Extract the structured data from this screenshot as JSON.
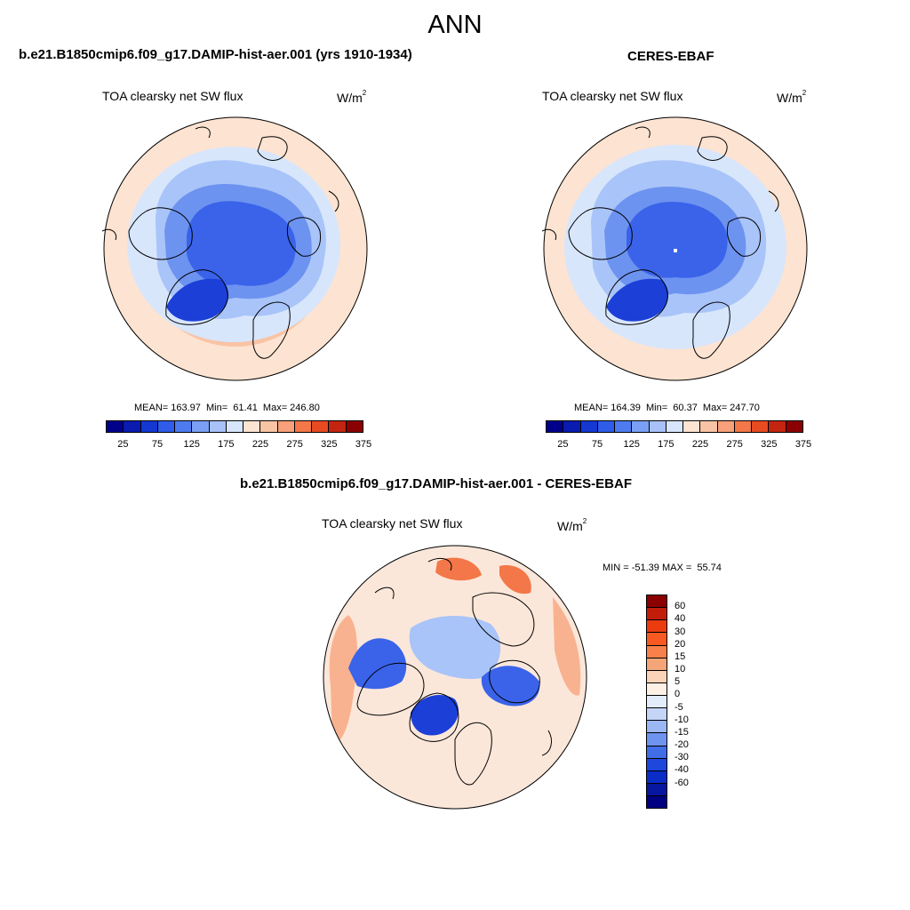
{
  "main_title": "ANN",
  "panels": {
    "model": {
      "title": "b.e21.B1850cmip6.f09_g17.DAMIP-hist-aer.001 (yrs 1910-1934)",
      "variable": "TOA clearsky net SW flux",
      "units_base": "W/m",
      "units_exp": "2",
      "stats": "MEAN= 163.97  Min=  61.41  Max= 246.80",
      "mean": 163.97,
      "min": 61.41,
      "max": 246.8
    },
    "obs": {
      "title": "CERES-EBAF",
      "variable": "TOA clearsky net SW flux",
      "units_base": "W/m",
      "units_exp": "2",
      "stats": "MEAN= 164.39  Min=  60.37  Max= 247.70",
      "mean": 164.39,
      "min": 60.37,
      "max": 247.7
    },
    "diff": {
      "title": "b.e21.B1850cmip6.f09_g17.DAMIP-hist-aer.001 - CERES-EBAF",
      "variable": "TOA clearsky net SW flux",
      "units_base": "W/m",
      "units_exp": "2",
      "stats": "MIN = -51.39 MAX =  55.74",
      "min": -51.39,
      "max": 55.74
    }
  },
  "colorbar_main": {
    "colors": [
      "#00008b",
      "#0a1bb0",
      "#1438d1",
      "#2f5ce8",
      "#4e7cf0",
      "#7aa0f5",
      "#a8c2f9",
      "#d8e6fc",
      "#fde3d1",
      "#f9c3a6",
      "#f7a07a",
      "#f37748",
      "#e84b22",
      "#c42511",
      "#8b0000"
    ],
    "tick_labels": [
      "25",
      "75",
      "125",
      "175",
      "225",
      "275",
      "325",
      "375"
    ]
  },
  "colorbar_diff": {
    "colors": [
      "#8b0000",
      "#c21d0a",
      "#ec3b0f",
      "#f85a22",
      "#f8804a",
      "#f5a678",
      "#fbd3b8",
      "#fdf1e6",
      "#e3ecfb",
      "#c4d5f7",
      "#9ab7f3",
      "#6e94ef",
      "#416ee6",
      "#1d47dd",
      "#0a2cc7",
      "#06169f",
      "#000080"
    ],
    "tick_labels": [
      "60",
      "40",
      "30",
      "20",
      "15",
      "10",
      "5",
      "0",
      "-5",
      "-10",
      "-15",
      "-20",
      "-30",
      "-40",
      "-60"
    ]
  },
  "map_colors": {
    "deep": "#1c3fd8",
    "mid_deep": "#3a63ea",
    "mid": "#6d93f0",
    "light_blue": "#a9c4f8",
    "pale_blue": "#d8e6fc",
    "pale_orange": "#fde3d1",
    "orange": "#f9c3a6",
    "diff_red": "#f37748",
    "diff_orange": "#f9b290"
  }
}
